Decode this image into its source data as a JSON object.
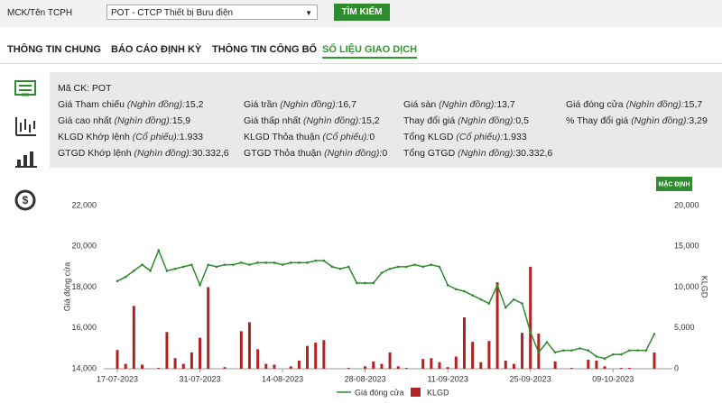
{
  "search": {
    "label": "MCK/Tên TCPH",
    "selected": "POT - CTCP Thiết bị Bưu điện",
    "button": "TÌM KIẾM"
  },
  "tabs": [
    "THÔNG TIN CHUNG",
    "BÁO CÁO ĐỊNH KỲ",
    "THÔNG TIN CÔNG BỐ",
    "SỐ LIỆU GIAO DỊCH"
  ],
  "info": {
    "code": "Mã CK: POT",
    "rows": [
      [
        {
          "label": "Giá Tham chiếu",
          "unit": "(Nghìn đồng):",
          "value": "15,2"
        },
        {
          "label": "Giá trần",
          "unit": "(Nghìn đồng):",
          "value": "16,7"
        },
        {
          "label": "Giá sàn",
          "unit": "(Nghìn đồng):",
          "value": "13,7"
        },
        {
          "label": "Giá đóng cửa",
          "unit": "(Nghìn đồng):",
          "value": "15,7"
        }
      ],
      [
        {
          "label": "Giá cao nhất",
          "unit": "(Nghìn đồng):",
          "value": "15,9"
        },
        {
          "label": "Giá thấp nhất",
          "unit": "(Nghìn đồng):",
          "value": "15,2"
        },
        {
          "label": "Thay đổi giá",
          "unit": "(Nghìn đồng):",
          "value": "0,5"
        },
        {
          "label": "% Thay đổi giá",
          "unit": "(Nghìn đồng):",
          "value": "3,29"
        }
      ],
      [
        {
          "label": "KLGD Khớp lệnh",
          "unit": "(Cổ phiếu):",
          "value": "1.933"
        },
        {
          "label": "KLGD Thỏa thuận",
          "unit": "(Cổ phiếu):",
          "value": "0"
        },
        {
          "label": "Tổng KLGD",
          "unit": "(Cổ phiếu):",
          "value": "1.933"
        }
      ],
      [
        {
          "label": "GTGD Khớp lệnh",
          "unit": "(Nghìn đồng):",
          "value": "30.332,6"
        },
        {
          "label": "GTGD Thỏa thuận",
          "unit": "(Nghìn đồng):",
          "value": "0"
        },
        {
          "label": "Tổng GTGD",
          "unit": "(Nghìn đồng):",
          "value": "30.332,6"
        }
      ]
    ]
  },
  "chart_data": {
    "type": "combo",
    "button": "MẶC ĐỊNH",
    "ylabel": "Giá đóng cửa",
    "y2label": "KLGD",
    "categories": [
      "17-07-2023",
      null,
      null,
      null,
      null,
      null,
      null,
      null,
      null,
      null,
      "31-07-2023",
      null,
      null,
      null,
      null,
      null,
      null,
      null,
      null,
      null,
      "14-08-2023",
      null,
      null,
      null,
      null,
      null,
      null,
      null,
      null,
      null,
      "28-08-2023",
      null,
      null,
      null,
      null,
      null,
      null,
      null,
      null,
      null,
      "11-09-2023",
      null,
      null,
      null,
      null,
      null,
      null,
      null,
      null,
      null,
      "25-09-2023",
      null,
      null,
      null,
      null,
      null,
      null,
      null,
      null,
      null,
      "09-10-2023",
      null,
      null,
      null,
      null,
      null
    ],
    "series": [
      {
        "name": "Giá đóng cửa",
        "type": "line",
        "color": "#2e8b2e",
        "values": [
          18300,
          18500,
          18800,
          19100,
          18800,
          19800,
          18800,
          18900,
          19000,
          19100,
          18100,
          19100,
          19000,
          19100,
          19100,
          19200,
          19100,
          19200,
          19200,
          19200,
          19100,
          19200,
          19200,
          19200,
          19300,
          19300,
          19000,
          18900,
          19000,
          18200,
          18200,
          18200,
          18700,
          18900,
          19000,
          19000,
          19100,
          19000,
          19100,
          19000,
          18100,
          17900,
          17800,
          17600,
          17400,
          17200,
          18100,
          17000,
          17400,
          17200,
          15800,
          14800,
          15300,
          14800,
          14900,
          14900,
          15000,
          14900,
          14600,
          14500,
          14700,
          14700,
          14900,
          14900,
          14900,
          15700
        ]
      },
      {
        "name": "KLGD",
        "type": "bar",
        "axis": "y2",
        "color": "#b22222",
        "values": [
          2300,
          600,
          7700,
          500,
          0,
          100,
          4500,
          1300,
          600,
          2000,
          3800,
          10000,
          0,
          200,
          0,
          4600,
          5700,
          2400,
          600,
          500,
          0,
          300,
          1000,
          2800,
          3200,
          3500,
          0,
          0,
          100,
          0,
          300,
          900,
          600,
          2000,
          300,
          100,
          0,
          1200,
          1300,
          800,
          200,
          1500,
          6300,
          3300,
          800,
          3400,
          10600,
          1000,
          600,
          4400,
          12500,
          4300,
          0,
          900,
          0,
          100,
          0,
          1100,
          1000,
          300,
          0,
          100,
          100,
          0,
          0,
          2000
        ]
      }
    ],
    "ylim": [
      14000,
      22000
    ],
    "yticks": [
      {
        "value": 14000,
        "label": "14,000"
      },
      {
        "value": 16000,
        "label": "16,000"
      },
      {
        "value": 18000,
        "label": "18,000"
      },
      {
        "value": 20000,
        "label": "20,000"
      },
      {
        "value": 22000,
        "label": "22,000"
      }
    ],
    "y2lim": [
      0,
      20000
    ],
    "y2ticks": [
      0,
      {
        "value": 5000,
        "label": "5,000"
      },
      {
        "value": 10000,
        "label": "10,000"
      },
      {
        "value": 15000,
        "label": "15,000"
      },
      {
        "value": 20000,
        "label": "20,000"
      }
    ]
  }
}
